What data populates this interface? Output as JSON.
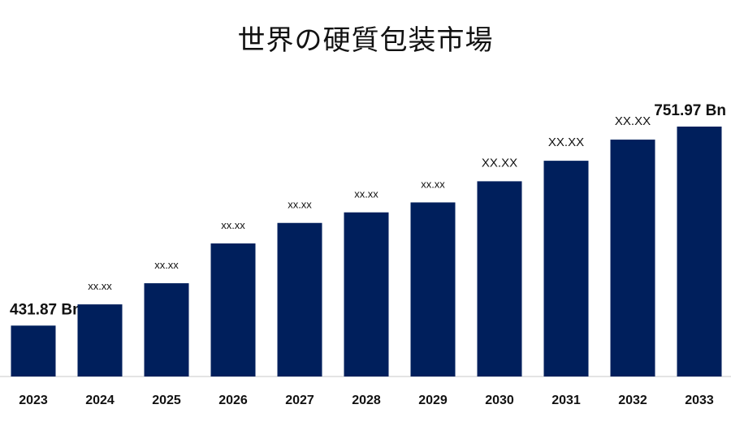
{
  "chart_data": {
    "type": "bar",
    "title": "世界の硬質包装市場",
    "categories": [
      "2023",
      "2024",
      "2025",
      "2026",
      "2027",
      "2028",
      "2029",
      "2030",
      "2031",
      "2032",
      "2033"
    ],
    "values": [
      431.87,
      466,
      500,
      564,
      597,
      614,
      630,
      664,
      697,
      731,
      751.97
    ],
    "data_labels": [
      "431.87 Bn",
      "xx.xx",
      "xx.xx",
      "xx.xx",
      "xx.xx",
      "xx.xx",
      "xx.xx",
      "XX.XX",
      "XX.XX",
      "XX.XX",
      "751.97 Bn"
    ],
    "xlabel": "",
    "ylabel": "",
    "ylim": [
      350,
      770
    ],
    "grid": false,
    "legend": "none",
    "bar_color": "#001f5c"
  }
}
